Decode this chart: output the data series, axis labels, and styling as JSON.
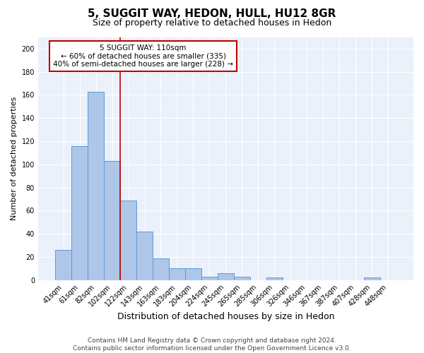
{
  "title1": "5, SUGGIT WAY, HEDON, HULL, HU12 8GR",
  "title2": "Size of property relative to detached houses in Hedon",
  "xlabel": "Distribution of detached houses by size in Hedon",
  "ylabel": "Number of detached properties",
  "categories": [
    "41sqm",
    "61sqm",
    "82sqm",
    "102sqm",
    "122sqm",
    "143sqm",
    "163sqm",
    "183sqm",
    "204sqm",
    "224sqm",
    "245sqm",
    "265sqm",
    "285sqm",
    "306sqm",
    "326sqm",
    "346sqm",
    "367sqm",
    "387sqm",
    "407sqm",
    "428sqm",
    "448sqm"
  ],
  "values": [
    26,
    116,
    163,
    103,
    69,
    42,
    19,
    10,
    10,
    3,
    6,
    3,
    0,
    2,
    0,
    0,
    0,
    0,
    0,
    2,
    0
  ],
  "bar_color": "#AEC6E8",
  "bar_edge_color": "#5B9BD5",
  "vline_x": 3.5,
  "vline_color": "#C00000",
  "annotation_title": "5 SUGGIT WAY: 110sqm",
  "annotation_line2": "← 60% of detached houses are smaller (335)",
  "annotation_line3": "40% of semi-detached houses are larger (228) →",
  "annotation_box_color": "#FFFFFF",
  "annotation_box_edge": "#C00000",
  "ylim": [
    0,
    210
  ],
  "yticks": [
    0,
    20,
    40,
    60,
    80,
    100,
    120,
    140,
    160,
    180,
    200
  ],
  "background_color": "#EAF1FB",
  "grid_color": "#FFFFFF",
  "footer": "Contains HM Land Registry data © Crown copyright and database right 2024.\nContains public sector information licensed under the Open Government Licence v3.0.",
  "title1_fontsize": 11,
  "title2_fontsize": 9,
  "xlabel_fontsize": 9,
  "ylabel_fontsize": 8,
  "tick_fontsize": 7,
  "footer_fontsize": 6.5,
  "annot_fontsize": 7.5
}
